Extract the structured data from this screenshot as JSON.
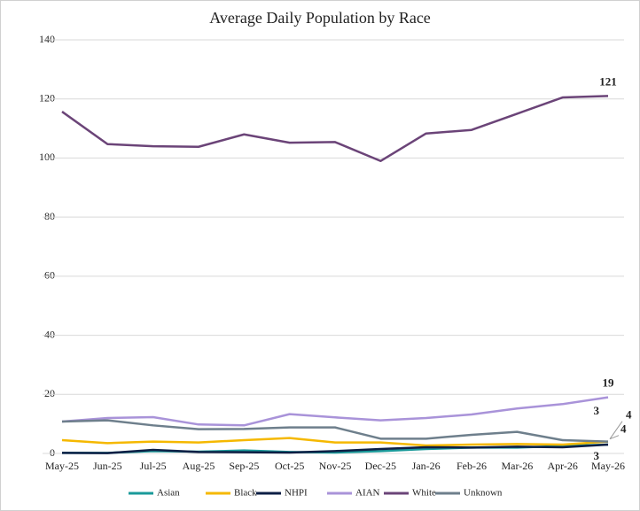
{
  "chart_data": {
    "type": "line",
    "title": "Average Daily Population by Race",
    "categories": [
      "May-25",
      "Jun-25",
      "Jul-25",
      "Aug-25",
      "Sep-25",
      "Oct-25",
      "Nov-25",
      "Dec-25",
      "Jan-26",
      "Feb-26",
      "Mar-26",
      "Apr-26",
      "May-26"
    ],
    "series": [
      {
        "name": "Asian",
        "color": "#1a9a9a",
        "values": [
          0.2,
          0.2,
          0.8,
          0.6,
          1,
          0.5,
          0.3,
          0.8,
          1.5,
          2,
          2,
          2.5,
          3
        ]
      },
      {
        "name": "Black",
        "color": "#f5b800",
        "values": [
          4.5,
          3.5,
          4,
          3.7,
          4.5,
          5.2,
          3.7,
          3.7,
          2.7,
          3,
          3.2,
          3,
          4
        ]
      },
      {
        "name": "NHPI",
        "color": "#0d1f45",
        "values": [
          0.2,
          0.1,
          1.2,
          0.5,
          0.4,
          0.3,
          0.8,
          1.5,
          2.1,
          2,
          2.3,
          2.1,
          3
        ]
      },
      {
        "name": "AIAN",
        "color": "#a993d9",
        "values": [
          10.8,
          12,
          12.3,
          9.8,
          9.5,
          13.3,
          12.2,
          11.2,
          12,
          13.2,
          15.2,
          16.7,
          19
        ]
      },
      {
        "name": "White",
        "color": "#6b4478",
        "values": [
          115.7,
          104.7,
          104,
          103.8,
          108,
          105.2,
          105.4,
          99,
          108.3,
          109.5,
          115,
          120.5,
          121
        ]
      },
      {
        "name": "Unknown",
        "color": "#6e7f8c",
        "values": [
          10.8,
          11.2,
          9.5,
          8.2,
          8.3,
          8.8,
          8.8,
          5,
          5,
          6.3,
          7.3,
          4.5,
          4
        ]
      }
    ],
    "ylim": [
      0,
      140
    ],
    "yticks": [
      0,
      20,
      40,
      60,
      80,
      100,
      120,
      140
    ],
    "grid": true,
    "legend": "bottom"
  }
}
